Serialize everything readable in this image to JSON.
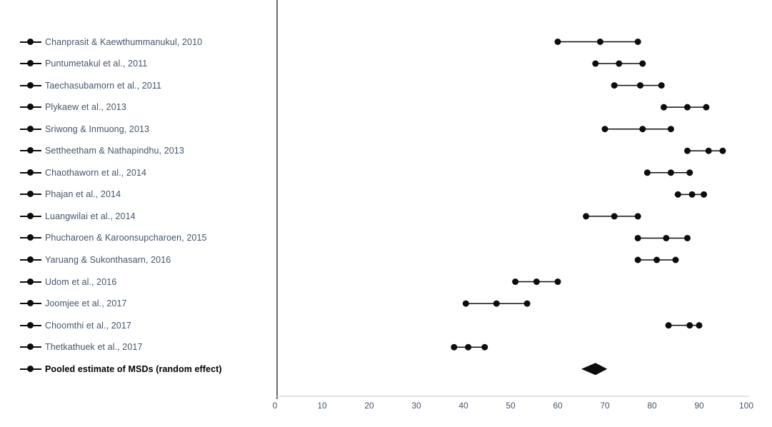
{
  "figure": {
    "background": "#ffffff"
  },
  "chart_data": {
    "type": "forest",
    "title": "",
    "xlabel": "",
    "ylabel": "",
    "legend_position": "left",
    "grid": false,
    "x_axis": {
      "min": 0,
      "max": 100,
      "ticks": [
        0,
        10,
        20,
        30,
        40,
        50,
        60,
        70,
        80,
        90,
        100
      ],
      "line_color": "#d9d9d9",
      "tick_label_color": "#44546a"
    },
    "y_axis": {
      "line_color": "#2b2b2b"
    },
    "marker_color": "#0d0d0d",
    "label_color": "#44546a",
    "pooled_label_color": "#000000",
    "studies": [
      {
        "label": "Chanprasit & Kaewthummanukul, 2010",
        "low": 60,
        "mid": 69,
        "high": 77
      },
      {
        "label": "Puntumetakul et al., 2011",
        "low": 68,
        "mid": 73,
        "high": 78
      },
      {
        "label": "Taechasubamorn et al., 2011",
        "low": 72,
        "mid": 77.5,
        "high": 82
      },
      {
        "label": "Plykaew et al., 2013",
        "low": 82.5,
        "mid": 87.5,
        "high": 91.5
      },
      {
        "label": "Sriwong & Inmuong, 2013",
        "low": 70,
        "mid": 78,
        "high": 84
      },
      {
        "label": "Settheetham & Nathapindhu, 2013",
        "low": 87.5,
        "mid": 92,
        "high": 95
      },
      {
        "label": "Chaothaworn et al., 2014",
        "low": 79,
        "mid": 84,
        "high": 88
      },
      {
        "label": "Phajan et al., 2014",
        "low": 85.5,
        "mid": 88.5,
        "high": 91
      },
      {
        "label": "Luangwilai et al., 2014",
        "low": 66,
        "mid": 72,
        "high": 77
      },
      {
        "label": "Phucharoen & Karoonsupcharoen, 2015",
        "low": 77,
        "mid": 83,
        "high": 87.5
      },
      {
        "label": "Yaruang & Sukonthasarn, 2016",
        "low": 77,
        "mid": 81,
        "high": 85
      },
      {
        "label": "Udom et al., 2016",
        "low": 51,
        "mid": 55.5,
        "high": 60
      },
      {
        "label": "Joomjee et al., 2017",
        "low": 40.5,
        "mid": 47,
        "high": 53.5
      },
      {
        "label": "Choomthi et al., 2017",
        "low": 83.5,
        "mid": 88,
        "high": 90
      },
      {
        "label": "Thetkathuek et al., 2017",
        "low": 38,
        "mid": 41,
        "high": 44.5
      }
    ],
    "pooled": {
      "label": "Pooled estimate of MSDs (random effect)",
      "low": 65,
      "mid": 68,
      "high": 70.5,
      "marker": "diamond"
    }
  }
}
